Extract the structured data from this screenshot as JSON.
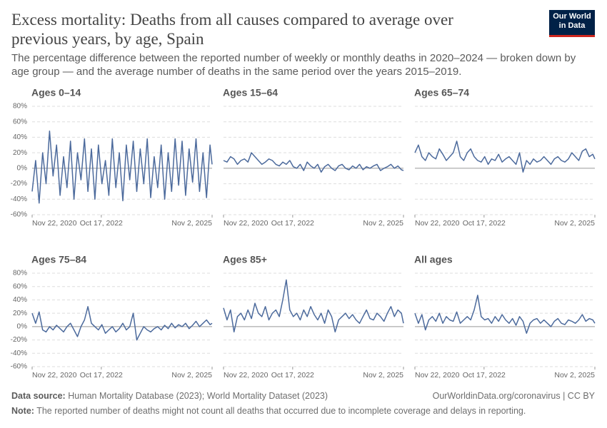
{
  "chart_data": {
    "type": "line",
    "title": "Excess mortality: Deaths from all causes compared to average over previous years, by age, Spain",
    "subtitle": "The percentage difference between the reported number of weekly or monthly deaths in 2020–2024 — broken down by age group — and the average number of deaths in the same period over the years 2015–2019.",
    "x": [
      "2020-11-22",
      "2020-12-27",
      "2021-01-31",
      "2021-03-07",
      "2021-04-11",
      "2021-05-16",
      "2021-06-20",
      "2021-07-25",
      "2021-08-29",
      "2021-10-03",
      "2021-11-07",
      "2021-12-12",
      "2022-01-16",
      "2022-02-20",
      "2022-03-27",
      "2022-05-01",
      "2022-06-05",
      "2022-07-10",
      "2022-08-14",
      "2022-09-18",
      "2022-10-23",
      "2022-11-27",
      "2023-01-01",
      "2023-02-05",
      "2023-03-12",
      "2023-04-16",
      "2023-05-21",
      "2023-06-25",
      "2023-07-30",
      "2023-09-03",
      "2023-10-08",
      "2023-11-12",
      "2023-12-17",
      "2024-01-21",
      "2024-02-25",
      "2024-03-31",
      "2024-05-05",
      "2024-06-09",
      "2024-07-14",
      "2024-08-18",
      "2024-09-22",
      "2024-10-27",
      "2024-12-01",
      "2025-01-05",
      "2025-02-09",
      "2025-03-16",
      "2025-04-20",
      "2025-05-25",
      "2025-06-29",
      "2025-08-03",
      "2025-09-07",
      "2025-10-12",
      "2025-11-02"
    ],
    "xlim": [
      "2020-11-22",
      "2025-11-02"
    ],
    "xticks": [
      {
        "value": "2020-11-22",
        "label": "Nov 22, 2020"
      },
      {
        "value": "2022-10-17",
        "label": "Oct 17, 2022"
      },
      {
        "value": "2025-11-02",
        "label": "Nov 2, 2025"
      }
    ],
    "ylim": [
      -60,
      80
    ],
    "yticks": [
      {
        "value": -60,
        "label": "-60%"
      },
      {
        "value": -40,
        "label": "-40%"
      },
      {
        "value": -20,
        "label": "-20%"
      },
      {
        "value": 0,
        "label": "0%"
      },
      {
        "value": 20,
        "label": "20%"
      },
      {
        "value": 40,
        "label": "40%"
      },
      {
        "value": 60,
        "label": "60%"
      },
      {
        "value": 80,
        "label": "80%"
      }
    ],
    "grid": true,
    "series": [
      {
        "name": "Ages 0–14",
        "color": "#4c6a9c",
        "values": [
          -30,
          10,
          -45,
          20,
          -20,
          48,
          -10,
          30,
          -35,
          15,
          -25,
          35,
          -40,
          20,
          -15,
          38,
          -30,
          25,
          -40,
          30,
          -20,
          10,
          -35,
          38,
          -25,
          20,
          -42,
          30,
          -15,
          35,
          -30,
          25,
          -20,
          38,
          -38,
          15,
          -25,
          30,
          -40,
          20,
          -30,
          38,
          -22,
          35,
          -35,
          25,
          -18,
          38,
          -30,
          20,
          -38,
          30,
          5
        ]
      },
      {
        "name": "Ages 15–64",
        "color": "#4c6a9c",
        "values": [
          10,
          8,
          15,
          12,
          5,
          10,
          12,
          8,
          20,
          15,
          10,
          5,
          8,
          12,
          10,
          5,
          3,
          8,
          5,
          10,
          2,
          0,
          5,
          -3,
          8,
          3,
          0,
          5,
          -5,
          2,
          5,
          0,
          -3,
          3,
          5,
          0,
          -2,
          3,
          0,
          5,
          -2,
          2,
          0,
          3,
          5,
          -3,
          0,
          2,
          5,
          0,
          3,
          -2,
          -3
        ]
      },
      {
        "name": "Ages 65–74",
        "color": "#4c6a9c",
        "values": [
          20,
          30,
          15,
          10,
          20,
          15,
          12,
          25,
          18,
          10,
          15,
          20,
          35,
          15,
          10,
          20,
          25,
          15,
          10,
          8,
          15,
          5,
          12,
          10,
          18,
          8,
          12,
          15,
          10,
          5,
          20,
          -5,
          10,
          5,
          12,
          8,
          10,
          15,
          10,
          5,
          12,
          15,
          10,
          8,
          12,
          20,
          15,
          10,
          22,
          25,
          15,
          18,
          12
        ]
      },
      {
        "name": "Ages 75–84",
        "color": "#4c6a9c",
        "values": [
          20,
          5,
          22,
          -5,
          -8,
          0,
          -5,
          2,
          -3,
          -8,
          0,
          5,
          -5,
          -15,
          0,
          10,
          30,
          5,
          0,
          -5,
          3,
          -10,
          -5,
          0,
          -8,
          -3,
          5,
          -5,
          0,
          20,
          -20,
          -10,
          0,
          -5,
          -8,
          -3,
          0,
          -5,
          2,
          -3,
          5,
          -2,
          3,
          0,
          5,
          -3,
          2,
          8,
          0,
          5,
          10,
          3,
          5
        ]
      },
      {
        "name": "Ages 85+",
        "color": "#4c6a9c",
        "values": [
          28,
          10,
          25,
          -8,
          15,
          20,
          10,
          25,
          12,
          35,
          20,
          15,
          30,
          10,
          20,
          25,
          15,
          40,
          70,
          25,
          15,
          20,
          10,
          25,
          15,
          30,
          18,
          10,
          20,
          5,
          25,
          15,
          -8,
          10,
          15,
          20,
          12,
          18,
          10,
          5,
          15,
          25,
          12,
          10,
          20,
          15,
          8,
          20,
          30,
          15,
          25,
          20,
          5
        ]
      },
      {
        "name": "All ages",
        "color": "#4c6a9c",
        "values": [
          20,
          5,
          18,
          -5,
          10,
          15,
          8,
          20,
          5,
          15,
          10,
          8,
          22,
          5,
          10,
          15,
          10,
          25,
          47,
          15,
          10,
          12,
          5,
          15,
          8,
          18,
          10,
          5,
          12,
          2,
          15,
          8,
          -10,
          5,
          10,
          12,
          5,
          10,
          5,
          0,
          8,
          12,
          5,
          3,
          10,
          8,
          5,
          10,
          18,
          8,
          12,
          10,
          5
        ]
      }
    ],
    "source_label": "Data source:",
    "source": "Human Mortality Database (2023); World Mortality Dataset (2023)",
    "link": "OurWorldinData.org/coronavirus | CC BY",
    "note_label": "Note:",
    "note": "The reported number of deaths might not count all deaths that occurred due to incomplete coverage and delays in reporting.",
    "logo": [
      "Our World",
      "in Data"
    ]
  }
}
